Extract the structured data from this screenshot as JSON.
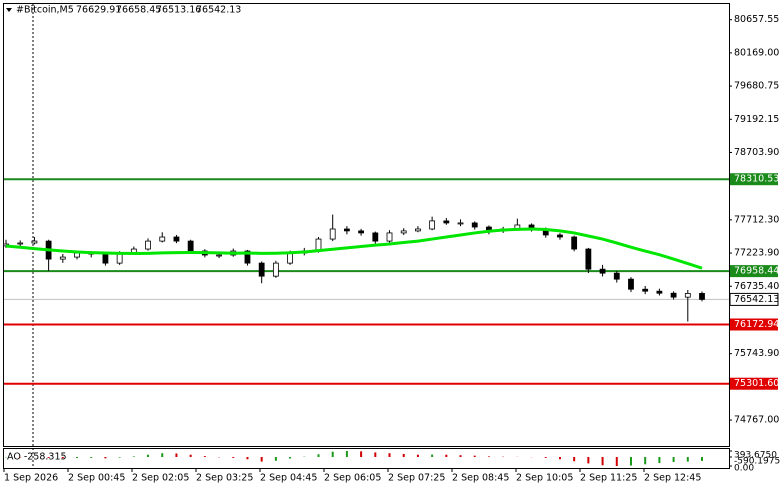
{
  "chart_data": {
    "type": "candlestick",
    "symbol": "#Bitcoin,M5",
    "ylim": [
      74400,
      80800
    ],
    "yticks": [
      {
        "value": 80657.55,
        "label": "80657.55"
      },
      {
        "value": 80169.0,
        "label": "80169.00"
      },
      {
        "value": 79680.75,
        "label": "79680.75"
      },
      {
        "value": 79192.15,
        "label": "79192.15"
      },
      {
        "value": 78703.9,
        "label": "78703.90"
      },
      {
        "value": 77712.3,
        "label": "77712.30"
      },
      {
        "value": 77223.9,
        "label": "77223.90"
      },
      {
        "value": 76735.4,
        "label": "76735.40"
      },
      {
        "value": 75743.9,
        "label": "75743.90"
      },
      {
        "value": 74767.0,
        "label": "74767.00"
      }
    ],
    "candles": [
      [
        77330,
        77420,
        77300,
        77357
      ],
      [
        77357,
        77410,
        77320,
        77372
      ],
      [
        77372,
        77460,
        77350,
        77400
      ],
      [
        77400,
        77420,
        76960,
        77135
      ],
      [
        77135,
        77210,
        77080,
        77165
      ],
      [
        77165,
        77260,
        77130,
        77224
      ],
      [
        77224,
        77250,
        77160,
        77210
      ],
      [
        77210,
        77230,
        77040,
        77076
      ],
      [
        77076,
        77250,
        77050,
        77224
      ],
      [
        77224,
        77320,
        77200,
        77283
      ],
      [
        77283,
        77440,
        77260,
        77400
      ],
      [
        77400,
        77530,
        77380,
        77460
      ],
      [
        77460,
        77490,
        77370,
        77400
      ],
      [
        77400,
        77420,
        77220,
        77254
      ],
      [
        77254,
        77280,
        77160,
        77195
      ],
      [
        77195,
        77240,
        77150,
        77195
      ],
      [
        77195,
        77290,
        77170,
        77254
      ],
      [
        77254,
        77270,
        77040,
        77076
      ],
      [
        77076,
        77100,
        76780,
        76884
      ],
      [
        76884,
        77110,
        76860,
        77076
      ],
      [
        77076,
        77260,
        77050,
        77224
      ],
      [
        77224,
        77300,
        77190,
        77254
      ],
      [
        77254,
        77460,
        77230,
        77430
      ],
      [
        77430,
        77790,
        77400,
        77578
      ],
      [
        77578,
        77620,
        77500,
        77550
      ],
      [
        77550,
        77580,
        77480,
        77520
      ],
      [
        77520,
        77540,
        77360,
        77400
      ],
      [
        77400,
        77560,
        77380,
        77520
      ],
      [
        77520,
        77590,
        77490,
        77550
      ],
      [
        77550,
        77620,
        77530,
        77578
      ],
      [
        77578,
        77760,
        77560,
        77697
      ],
      [
        77697,
        77740,
        77640,
        77667
      ],
      [
        77667,
        77720,
        77620,
        77667
      ],
      [
        77667,
        77690,
        77570,
        77607
      ],
      [
        77607,
        77630,
        77500,
        77550
      ],
      [
        77550,
        77610,
        77520,
        77578
      ],
      [
        77578,
        77730,
        77560,
        77637
      ],
      [
        77637,
        77660,
        77540,
        77578
      ],
      [
        77578,
        77600,
        77450,
        77490
      ],
      [
        77490,
        77520,
        77420,
        77460
      ],
      [
        77460,
        77480,
        77250,
        77283
      ],
      [
        77283,
        77300,
        76930,
        76987
      ],
      [
        76987,
        77050,
        76880,
        76928
      ],
      [
        76928,
        76960,
        76790,
        76840
      ],
      [
        76840,
        76870,
        76650,
        76692
      ],
      [
        76692,
        76740,
        76620,
        76663
      ],
      [
        76663,
        76700,
        76600,
        76633
      ],
      [
        76633,
        76660,
        76540,
        76575
      ],
      [
        76575,
        76680,
        76217,
        76629.91
      ],
      [
        76629.91,
        76658.45,
        76513.16,
        76542.13
      ]
    ],
    "moving_average": {
      "color": "#00e600",
      "values": [
        77327,
        77310,
        77290,
        77270,
        77254,
        77240,
        77230,
        77224,
        77220,
        77218,
        77220,
        77226,
        77230,
        77232,
        77230,
        77226,
        77222,
        77224,
        77220,
        77222,
        77228,
        77240,
        77260,
        77280,
        77300,
        77320,
        77340,
        77357,
        77380,
        77400,
        77430,
        77460,
        77490,
        77520,
        77545,
        77564,
        77572,
        77578,
        77570,
        77550,
        77520,
        77475,
        77430,
        77372,
        77310,
        77254,
        77200,
        77135,
        77070,
        77002
      ]
    },
    "levels": [
      {
        "value": 78310.53,
        "label": "78310.53",
        "color": "#1a8a1a"
      },
      {
        "value": 76958.44,
        "label": "76958.44",
        "color": "#1a8a1a"
      },
      {
        "value": 76172.94,
        "label": "76172.94",
        "color": "#e00000"
      },
      {
        "value": 75301.6,
        "label": "75301.60",
        "color": "#e00000"
      }
    ],
    "ao": {
      "title": "AO -258.315",
      "ylim": [
        -590.1975,
        393.675
      ],
      "yticks": [
        {
          "value": 393.675,
          "label": "393.6750"
        },
        {
          "value": 0,
          "label": "0.00"
        },
        {
          "value": -590.1975,
          "label": "-590.1975"
        }
      ],
      "up_color": "#1a9a1a",
      "down_color": "#d00000",
      "values": [
        -20,
        -30,
        -10,
        -60,
        -80,
        -70,
        -60,
        -90,
        -40,
        40,
        150,
        250,
        230,
        150,
        60,
        -20,
        -60,
        -150,
        -300,
        -250,
        -100,
        20,
        180,
        350,
        393,
        370,
        300,
        250,
        200,
        150,
        160,
        150,
        120,
        90,
        40,
        20,
        10,
        -10,
        -60,
        -150,
        -280,
        -420,
        -540,
        -590,
        -560,
        -480,
        -400,
        -330,
        -300,
        -258.315
      ]
    },
    "time_labels": [
      "1 Sep 2026",
      "2 Sep 00:45",
      "2 Sep 02:05",
      "2 Sep 03:25",
      "2 Sep 04:45",
      "2 Sep 06:05",
      "2 Sep 07:25",
      "2 Sep 08:45",
      "2 Sep 10:05",
      "2 Sep 11:25",
      "2 Sep 12:45"
    ]
  }
}
